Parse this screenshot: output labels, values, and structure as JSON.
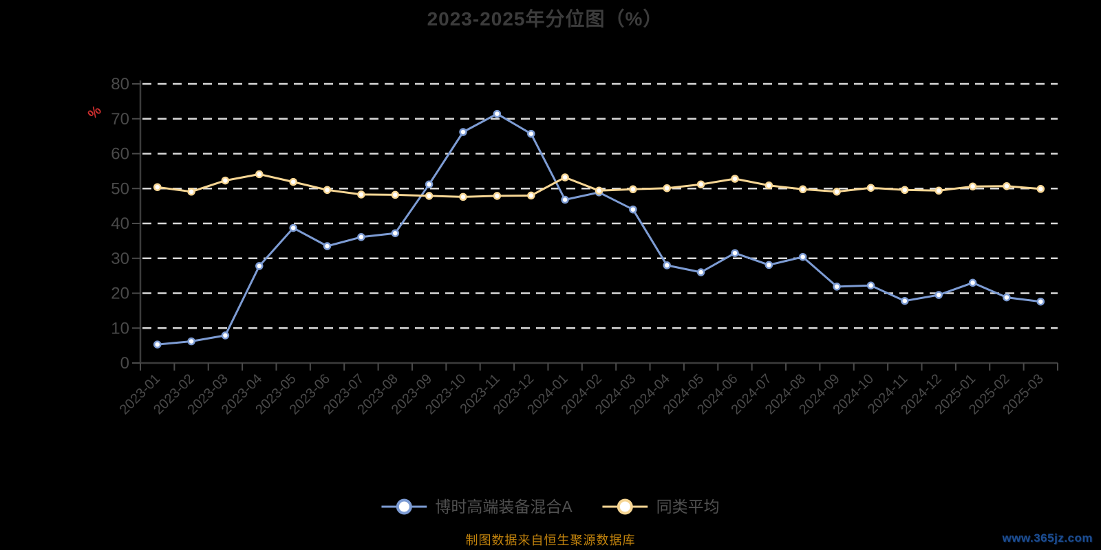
{
  "chart_data": {
    "type": "line",
    "title": "2023-2025年分位图（%）",
    "ylabel": "%",
    "ylim": [
      0,
      80
    ],
    "y_ticks": [
      0,
      10,
      20,
      30,
      40,
      50,
      60,
      70,
      80
    ],
    "grid": "horizontal-dashed",
    "legend_position": "bottom",
    "categories": [
      "2023-01",
      "2023-02",
      "2023-03",
      "2023-04",
      "2023-05",
      "2023-06",
      "2023-07",
      "2023-08",
      "2023-09",
      "2023-10",
      "2023-11",
      "2023-12",
      "2024-01",
      "2024-02",
      "2024-03",
      "2024-04",
      "2024-05",
      "2024-06",
      "2024-07",
      "2024-08",
      "2024-09",
      "2024-10",
      "2024-11",
      "2024-12",
      "2025-01",
      "2025-02",
      "2025-03"
    ],
    "series": [
      {
        "name": "博时高端装备混合A",
        "color": "#7d9cd4",
        "values": [
          5.3,
          6.2,
          7.9,
          27.8,
          38.7,
          33.5,
          36.1,
          37.2,
          51.2,
          66.2,
          71.4,
          65.7,
          46.8,
          48.9,
          44.0,
          28.0,
          26.0,
          31.5,
          28.1,
          30.4,
          21.9,
          22.2,
          17.8,
          19.5,
          23.0,
          18.8,
          17.6
        ]
      },
      {
        "name": "同类平均",
        "color": "#f7d694",
        "values": [
          50.4,
          49.1,
          52.3,
          54.1,
          51.9,
          49.6,
          48.3,
          48.2,
          47.9,
          47.6,
          47.9,
          48.0,
          53.2,
          49.4,
          49.8,
          50.1,
          51.2,
          52.8,
          50.9,
          49.8,
          49.1,
          50.2,
          49.6,
          49.4,
          50.6,
          50.7,
          49.9
        ]
      }
    ]
  },
  "style": {
    "background": "#000000",
    "title_color": "#3c3c3c",
    "axis_line_color": "#3c3c3c",
    "axis_label_color": "#4a4a4a",
    "gridline_color": "#d9d9d9",
    "y_unit_color": "#cc2e2e",
    "marker_fill": "#ffffff",
    "legend_text_color": "#515151",
    "footer_color": "#c2830d",
    "watermark_color": "#1c4d92"
  },
  "footer": {
    "source_note": "制图数据来自恒生聚源数据库",
    "watermark": "www.365jz.com"
  }
}
